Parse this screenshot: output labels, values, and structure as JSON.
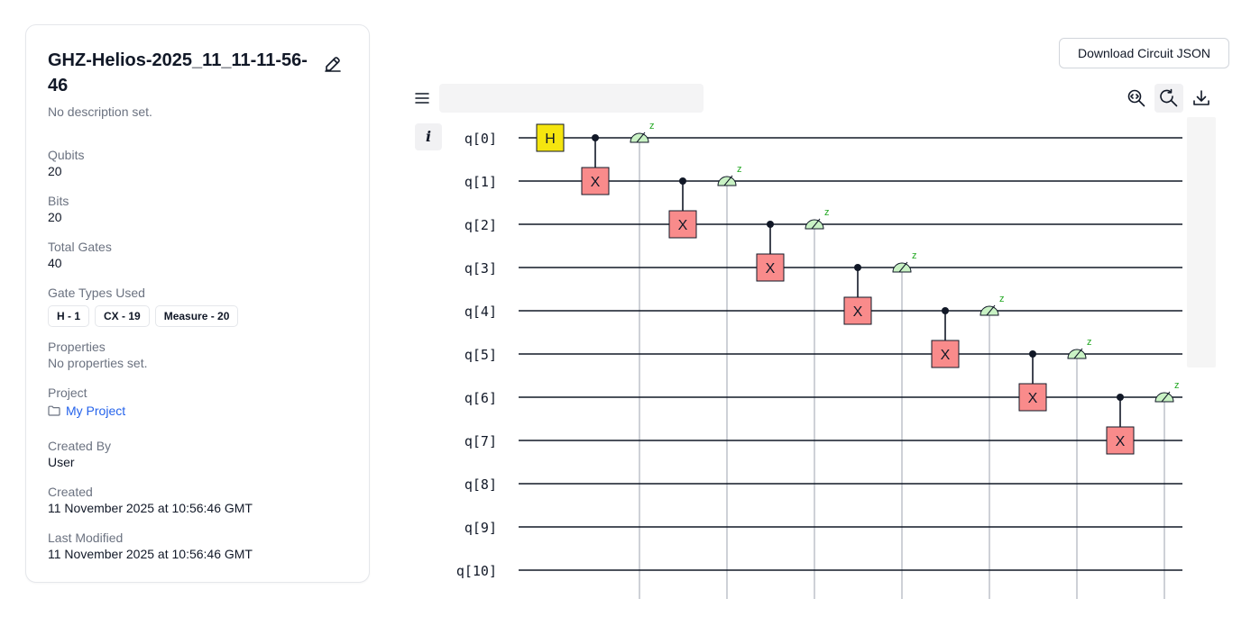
{
  "circuit": {
    "title": "GHZ-Helios-2025_11_11-11-56-46",
    "description": "No description set."
  },
  "details": {
    "qubits_label": "Qubits",
    "qubits": "20",
    "bits_label": "Bits",
    "bits": "20",
    "total_gates_label": "Total Gates",
    "total_gates": "40",
    "gate_types_label": "Gate Types Used",
    "gate_types": [
      "H - 1",
      "CX - 19",
      "Measure - 20"
    ],
    "properties_label": "Properties",
    "properties": "No properties set.",
    "project_label": "Project",
    "project": "My Project",
    "created_by_label": "Created By",
    "created_by": "User",
    "created_label": "Created",
    "created": "11 November 2025 at 10:56:46 GMT",
    "modified_label": "Last Modified",
    "modified": "11 November 2025 at 10:56:46 GMT"
  },
  "toolbar": {
    "download_json_label": "Download Circuit JSON",
    "name_input_value": "",
    "icons": [
      "menu-icon",
      "zoom-fit-icon",
      "zoom-reset-icon",
      "download-icon",
      "info-icon"
    ]
  },
  "diagram": {
    "qubit_labels": [
      "q[0]",
      "q[1]",
      "q[2]",
      "q[3]",
      "q[4]",
      "q[5]",
      "q[6]",
      "q[7]",
      "q[8]",
      "q[9]",
      "q[10]"
    ],
    "gates": [
      {
        "type": "H",
        "target": 0,
        "label": "H"
      },
      {
        "type": "CX",
        "control": 0,
        "target": 1,
        "label": "X"
      },
      {
        "type": "CX",
        "control": 1,
        "target": 2,
        "label": "X"
      },
      {
        "type": "CX",
        "control": 2,
        "target": 3,
        "label": "X"
      },
      {
        "type": "CX",
        "control": 3,
        "target": 4,
        "label": "X"
      },
      {
        "type": "CX",
        "control": 4,
        "target": 5,
        "label": "X"
      },
      {
        "type": "CX",
        "control": 5,
        "target": 6,
        "label": "X"
      },
      {
        "type": "CX",
        "control": 6,
        "target": 7,
        "label": "X"
      }
    ],
    "measurements": [
      0,
      1,
      2,
      3,
      4,
      5,
      6
    ],
    "measure_basis_label": "z",
    "colors": {
      "h_gate": "#f5e50f",
      "x_gate": "#f98b8b",
      "measure": "#c9f2c4",
      "measure_label": "#22a822",
      "wire": "#111827",
      "classical": "#9ca3af"
    }
  }
}
